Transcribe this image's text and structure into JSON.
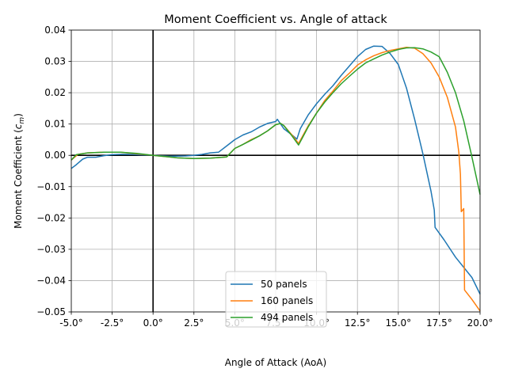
{
  "chart_data": {
    "type": "line",
    "title": "Moment Coefficient vs. Angle of attack",
    "xlabel": "Angle of Attack (AoA)",
    "ylabel": "Moment Coefficient (",
    "ylabel_symbol": "c",
    "ylabel_subscript": "m",
    "ylabel_close": ")",
    "xlim": [
      -5,
      20
    ],
    "ylim": [
      -0.05,
      0.04
    ],
    "x_ticks": [
      -5,
      -2.5,
      0,
      2.5,
      5,
      7.5,
      10,
      12.5,
      15,
      17.5,
      20
    ],
    "x_tick_labels": [
      "-5.0°",
      "-2.5°",
      "0.0°",
      "2.5°",
      "5.0°",
      "7.5°",
      "10.0°",
      "12.5°",
      "15.0°",
      "17.5°",
      "20.0°"
    ],
    "y_ticks": [
      -0.05,
      -0.04,
      -0.03,
      -0.02,
      -0.01,
      0,
      0.01,
      0.02,
      0.03,
      0.04
    ],
    "y_tick_labels": [
      "−0.05",
      "−0.04",
      "−0.03",
      "−0.02",
      "−0.01",
      "0.00",
      "0.01",
      "0.02",
      "0.03",
      "0.04"
    ],
    "grid": true,
    "reference_lines": {
      "x": 0,
      "y": 0,
      "color": "#000000"
    },
    "legend_position": "lower-center",
    "series": [
      {
        "name": "50 panels",
        "color": "#1f77b4",
        "points": [
          [
            -5,
            -0.0042
          ],
          [
            -4.7,
            -0.003
          ],
          [
            -4.3,
            -0.0012
          ],
          [
            -4,
            -0.0006
          ],
          [
            -3.5,
            -0.0006
          ],
          [
            -3,
            -0.0001
          ],
          [
            -2.5,
            0.0002
          ],
          [
            -2,
            0.0003
          ],
          [
            -1.5,
            0.0003
          ],
          [
            -1,
            0.0002
          ],
          [
            0,
            0
          ],
          [
            1,
            -0.0003
          ],
          [
            2,
            -0.0002
          ],
          [
            2.5,
            0
          ],
          [
            3,
            0.0003
          ],
          [
            3.5,
            0.0008
          ],
          [
            4,
            0.001
          ],
          [
            4.5,
            0.003
          ],
          [
            5,
            0.005
          ],
          [
            5.5,
            0.0065
          ],
          [
            6,
            0.0075
          ],
          [
            6.5,
            0.009
          ],
          [
            7,
            0.0102
          ],
          [
            7.5,
            0.0108
          ],
          [
            7.6,
            0.0115
          ],
          [
            8,
            0.0085
          ],
          [
            8.5,
            0.0065
          ],
          [
            8.8,
            0.0052
          ],
          [
            9,
            0.0085
          ],
          [
            9.5,
            0.013
          ],
          [
            10,
            0.0165
          ],
          [
            10.5,
            0.0195
          ],
          [
            11,
            0.0222
          ],
          [
            11.5,
            0.0255
          ],
          [
            12,
            0.0285
          ],
          [
            12.5,
            0.0315
          ],
          [
            13,
            0.0338
          ],
          [
            13.5,
            0.0349
          ],
          [
            14,
            0.0348
          ],
          [
            14.5,
            0.0325
          ],
          [
            15,
            0.029
          ],
          [
            15.5,
            0.0215
          ],
          [
            16,
            0.0115
          ],
          [
            16.5,
            0.0005
          ],
          [
            17,
            -0.0115
          ],
          [
            17.2,
            -0.0175
          ],
          [
            17.25,
            -0.023
          ],
          [
            17.8,
            -0.027
          ],
          [
            18.5,
            -0.0325
          ],
          [
            19.5,
            -0.039
          ],
          [
            20,
            -0.0443
          ]
        ]
      },
      {
        "name": "160 panels",
        "color": "#ff7f0e",
        "points": [
          [
            -5,
            -0.0015
          ],
          [
            -4.6,
            0.0003
          ],
          [
            -4,
            0.0008
          ],
          [
            -3,
            0.001
          ],
          [
            -2,
            0.001
          ],
          [
            -1,
            0.0005
          ],
          [
            0,
            0
          ],
          [
            1,
            -0.0005
          ],
          [
            1.5,
            -0.0008
          ],
          [
            2.5,
            -0.001
          ],
          [
            3.5,
            -0.0009
          ],
          [
            4.5,
            -0.0005
          ],
          [
            5,
            0.0022
          ],
          [
            5.5,
            0.0035
          ],
          [
            6,
            0.005
          ],
          [
            6.5,
            0.0062
          ],
          [
            7,
            0.0078
          ],
          [
            7.5,
            0.0098
          ],
          [
            7.8,
            0.0102
          ],
          [
            8,
            0.0095
          ],
          [
            8.5,
            0.0065
          ],
          [
            8.9,
            0.0038
          ],
          [
            9.5,
            0.0095
          ],
          [
            10,
            0.0135
          ],
          [
            10.5,
            0.0175
          ],
          [
            11,
            0.0205
          ],
          [
            11.5,
            0.0238
          ],
          [
            12,
            0.0262
          ],
          [
            12.5,
            0.0288
          ],
          [
            13,
            0.0305
          ],
          [
            13.5,
            0.0318
          ],
          [
            14,
            0.0328
          ],
          [
            14.5,
            0.0335
          ],
          [
            15,
            0.034
          ],
          [
            15.5,
            0.0345
          ],
          [
            16,
            0.0342
          ],
          [
            16.5,
            0.0325
          ],
          [
            17,
            0.0295
          ],
          [
            17.5,
            0.025
          ],
          [
            18,
            0.0185
          ],
          [
            18.5,
            0.009
          ],
          [
            18.7,
            0.001
          ],
          [
            18.8,
            -0.006
          ],
          [
            18.85,
            -0.018
          ],
          [
            19,
            -0.017
          ],
          [
            19.05,
            -0.043
          ],
          [
            19.5,
            -0.046
          ],
          [
            20,
            -0.0497
          ]
        ]
      },
      {
        "name": "494 panels",
        "color": "#2ca02c",
        "points": [
          [
            -5,
            -0.0015
          ],
          [
            -4.7,
            0.0002
          ],
          [
            -4,
            0.0008
          ],
          [
            -3,
            0.001
          ],
          [
            -2,
            0.001
          ],
          [
            -1,
            0.0006
          ],
          [
            0,
            0
          ],
          [
            1,
            -0.0005
          ],
          [
            1.5,
            -0.0008
          ],
          [
            2.5,
            -0.001
          ],
          [
            3.5,
            -0.0009
          ],
          [
            4.5,
            -0.0005
          ],
          [
            5,
            0.0022
          ],
          [
            5.5,
            0.0035
          ],
          [
            6,
            0.0048
          ],
          [
            6.5,
            0.0062
          ],
          [
            7,
            0.0078
          ],
          [
            7.5,
            0.0098
          ],
          [
            7.8,
            0.0102
          ],
          [
            8,
            0.0095
          ],
          [
            8.5,
            0.0062
          ],
          [
            8.9,
            0.0033
          ],
          [
            9.5,
            0.0092
          ],
          [
            10,
            0.0135
          ],
          [
            10.5,
            0.017
          ],
          [
            11,
            0.02
          ],
          [
            11.5,
            0.0228
          ],
          [
            12,
            0.0252
          ],
          [
            12.5,
            0.0275
          ],
          [
            13,
            0.0295
          ],
          [
            13.5,
            0.0308
          ],
          [
            14,
            0.032
          ],
          [
            14.5,
            0.033
          ],
          [
            15,
            0.0338
          ],
          [
            15.5,
            0.0343
          ],
          [
            16,
            0.0344
          ],
          [
            16.5,
            0.034
          ],
          [
            17,
            0.033
          ],
          [
            17.5,
            0.0315
          ],
          [
            18,
            0.0265
          ],
          [
            18.5,
            0.02
          ],
          [
            19,
            0.011
          ],
          [
            19.5,
            -0.0005
          ],
          [
            20,
            -0.0125
          ]
        ]
      }
    ]
  }
}
